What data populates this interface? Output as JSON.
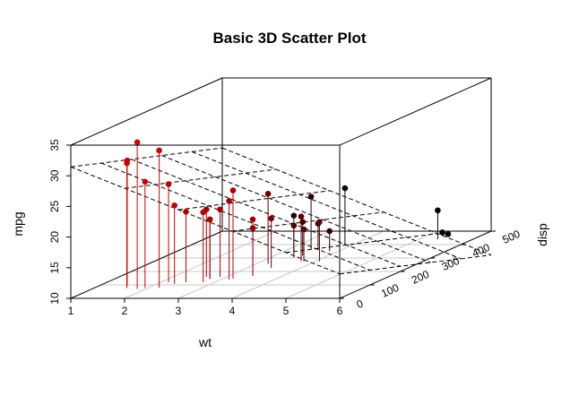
{
  "chart_data": {
    "type": "scatter3d",
    "title": "Basic 3D Scatter Plot",
    "xlabel": "wt",
    "ylabel": "disp",
    "zlabel": "mpg",
    "xlim": [
      1,
      6
    ],
    "ylim": [
      0,
      500
    ],
    "zlim": [
      10,
      35
    ],
    "x_ticks": [
      "1",
      "2",
      "3",
      "4",
      "5",
      "6"
    ],
    "y_ticks": [
      "0",
      "100",
      "200",
      "300",
      "400",
      "500"
    ],
    "z_ticks": [
      "10",
      "15",
      "20",
      "25",
      "30",
      "35"
    ],
    "type_h": true,
    "grid": true,
    "regression_plane": true,
    "points": [
      {
        "wt": 1.835,
        "disp": 71.1,
        "mpg": 33.9
      },
      {
        "wt": 2.2,
        "disp": 78.7,
        "mpg": 32.4
      },
      {
        "wt": 1.615,
        "disp": 75.7,
        "mpg": 30.4
      },
      {
        "wt": 1.513,
        "disp": 95.1,
        "mpg": 30.4
      },
      {
        "wt": 1.935,
        "disp": 79.0,
        "mpg": 27.3
      },
      {
        "wt": 2.14,
        "disp": 120.3,
        "mpg": 26.0
      },
      {
        "wt": 2.32,
        "disp": 108.0,
        "mpg": 22.8
      },
      {
        "wt": 2.62,
        "disp": 160.0,
        "mpg": 21.0
      },
      {
        "wt": 2.875,
        "disp": 160.0,
        "mpg": 21.0
      },
      {
        "wt": 3.215,
        "disp": 258.0,
        "mpg": 21.4
      },
      {
        "wt": 3.19,
        "disp": 146.7,
        "mpg": 24.4
      },
      {
        "wt": 3.15,
        "disp": 140.8,
        "mpg": 22.8
      },
      {
        "wt": 3.44,
        "disp": 167.6,
        "mpg": 19.2
      },
      {
        "wt": 3.44,
        "disp": 167.6,
        "mpg": 17.8
      },
      {
        "wt": 2.465,
        "disp": 120.1,
        "mpg": 21.5
      },
      {
        "wt": 2.77,
        "disp": 145.0,
        "mpg": 19.7
      },
      {
        "wt": 2.78,
        "disp": 121.0,
        "mpg": 21.4
      },
      {
        "wt": 3.46,
        "disp": 225.0,
        "mpg": 18.1
      },
      {
        "wt": 3.44,
        "disp": 360.0,
        "mpg": 18.7
      },
      {
        "wt": 3.57,
        "disp": 360.0,
        "mpg": 14.3
      },
      {
        "wt": 4.07,
        "disp": 275.8,
        "mpg": 16.4
      },
      {
        "wt": 3.73,
        "disp": 275.8,
        "mpg": 17.3
      },
      {
        "wt": 3.78,
        "disp": 275.8,
        "mpg": 15.2
      },
      {
        "wt": 3.52,
        "disp": 318.0,
        "mpg": 15.5
      },
      {
        "wt": 3.435,
        "disp": 304.0,
        "mpg": 15.2
      },
      {
        "wt": 3.84,
        "disp": 350.0,
        "mpg": 13.3
      },
      {
        "wt": 3.845,
        "disp": 400.0,
        "mpg": 19.2
      },
      {
        "wt": 3.17,
        "disp": 351.0,
        "mpg": 15.8
      },
      {
        "wt": 2.77,
        "disp": 145.0,
        "mpg": 19.7
      },
      {
        "wt": 5.25,
        "disp": 472.0,
        "mpg": 10.4
      },
      {
        "wt": 5.424,
        "disp": 460.0,
        "mpg": 10.4
      },
      {
        "wt": 5.345,
        "disp": 440.0,
        "mpg": 14.7
      }
    ]
  }
}
